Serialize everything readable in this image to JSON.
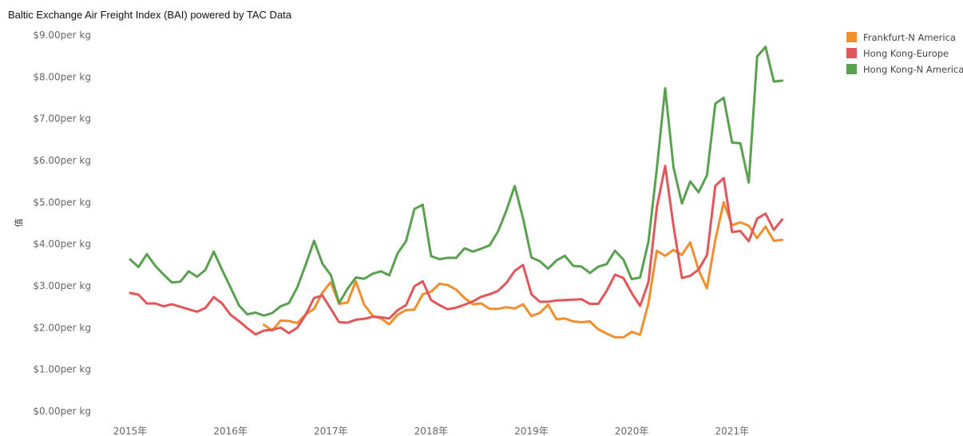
{
  "chart_data": {
    "type": "line",
    "title": "Baltic Exchange Air Freight Index (BAI) powered by TAC Data",
    "ylabel": "值",
    "xlabel": "",
    "y_unit_suffix": "per kg",
    "y_ticks": [
      "$0.00per kg",
      "$1.00per kg",
      "$2.00per kg",
      "$3.00per kg",
      "$4.00per kg",
      "$5.00per kg",
      "$6.00per kg",
      "$7.00per kg",
      "$8.00per kg",
      "$9.00per kg"
    ],
    "y_tick_values": [
      0,
      1,
      2,
      3,
      4,
      5,
      6,
      7,
      8,
      9
    ],
    "ylim": [
      0,
      9
    ],
    "xlim": [
      2015.0,
      2021.75
    ],
    "x_ticks": [
      {
        "label": "2015年",
        "value": 2015.0
      },
      {
        "label": "2016年",
        "value": 2016.0
      },
      {
        "label": "2017年",
        "value": 2017.0
      },
      {
        "label": "2018年",
        "value": 2018.0
      },
      {
        "label": "2019年",
        "value": 2019.0
      },
      {
        "label": "2020年",
        "value": 2020.0
      },
      {
        "label": "2021年",
        "value": 2021.0
      }
    ],
    "legend_position": "top-right",
    "grid": false,
    "series": [
      {
        "name": "Frankfurt-N America",
        "color": "#f28e2b",
        "start": 2016.333,
        "step": 0.0833333,
        "values": [
          2.07,
          1.93,
          2.17,
          2.16,
          2.11,
          2.32,
          2.45,
          2.84,
          3.09,
          2.57,
          2.6,
          3.11,
          2.55,
          2.29,
          2.22,
          2.08,
          2.31,
          2.42,
          2.43,
          2.8,
          2.86,
          3.05,
          3.02,
          2.91,
          2.71,
          2.56,
          2.58,
          2.45,
          2.45,
          2.49,
          2.46,
          2.56,
          2.28,
          2.35,
          2.55,
          2.2,
          2.22,
          2.15,
          2.13,
          2.15,
          1.96,
          1.86,
          1.77,
          1.77,
          1.9,
          1.83,
          2.58,
          3.84,
          3.72,
          3.86,
          3.74,
          4.04,
          3.38,
          2.94,
          4.1,
          5.0,
          4.45,
          4.52,
          4.44,
          4.14,
          4.42,
          4.08,
          4.1
        ]
      },
      {
        "name": "Hong Kong-Europe",
        "color": "#e15759",
        "start": 2015.0,
        "step": 0.0833333,
        "values": [
          2.83,
          2.79,
          2.58,
          2.58,
          2.51,
          2.56,
          2.5,
          2.44,
          2.38,
          2.47,
          2.73,
          2.58,
          2.31,
          2.16,
          1.99,
          1.84,
          1.93,
          1.95,
          2.0,
          1.87,
          2.0,
          2.31,
          2.71,
          2.77,
          2.45,
          2.13,
          2.12,
          2.19,
          2.21,
          2.26,
          2.25,
          2.22,
          2.42,
          2.54,
          2.99,
          3.11,
          2.66,
          2.54,
          2.44,
          2.48,
          2.55,
          2.63,
          2.74,
          2.8,
          2.88,
          3.07,
          3.36,
          3.5,
          2.8,
          2.62,
          2.62,
          2.65,
          2.66,
          2.67,
          2.68,
          2.57,
          2.57,
          2.88,
          3.27,
          3.19,
          2.83,
          2.52,
          3.09,
          4.88,
          5.87,
          4.43,
          3.19,
          3.24,
          3.39,
          3.74,
          5.39,
          5.58,
          4.29,
          4.31,
          4.07,
          4.61,
          4.73,
          4.34,
          4.59
        ]
      },
      {
        "name": "Hong Kong-N America",
        "color": "#59a14f",
        "start": 2015.0,
        "step": 0.0833333,
        "values": [
          3.63,
          3.45,
          3.76,
          3.48,
          3.27,
          3.08,
          3.1,
          3.35,
          3.22,
          3.38,
          3.82,
          3.38,
          2.97,
          2.54,
          2.32,
          2.36,
          2.29,
          2.35,
          2.51,
          2.59,
          2.97,
          3.51,
          4.08,
          3.53,
          3.26,
          2.59,
          2.93,
          3.2,
          3.17,
          3.29,
          3.35,
          3.25,
          3.78,
          4.07,
          4.84,
          4.94,
          3.71,
          3.64,
          3.67,
          3.67,
          3.9,
          3.82,
          3.89,
          3.97,
          4.3,
          4.8,
          5.39,
          4.62,
          3.68,
          3.59,
          3.41,
          3.61,
          3.72,
          3.48,
          3.46,
          3.31,
          3.46,
          3.52,
          3.84,
          3.63,
          3.16,
          3.2,
          4.06,
          5.81,
          7.73,
          5.83,
          4.97,
          5.5,
          5.24,
          5.65,
          7.36,
          7.5,
          6.43,
          6.41,
          5.47,
          8.49,
          8.72,
          7.89,
          7.91
        ]
      }
    ]
  }
}
